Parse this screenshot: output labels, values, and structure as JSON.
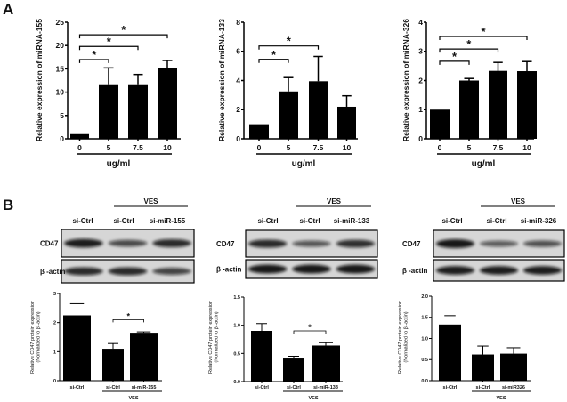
{
  "panel_labels": {
    "a": "A",
    "b": "B"
  },
  "chart_data": [
    {
      "type": "bar",
      "panel": "A",
      "ylabel": "Relative  expression of miRNA-155",
      "xlabel": "ug/ml",
      "categories": [
        "0",
        "5",
        "7.5",
        "10"
      ],
      "values": [
        1,
        11.5,
        11.5,
        15.1
      ],
      "errors": [
        0,
        3.7,
        2.3,
        1.7
      ],
      "ylim": [
        0,
        25
      ],
      "yticks": [
        "0",
        "5",
        "10",
        "15",
        "20",
        "25"
      ],
      "ytick_values": [
        0,
        5,
        10,
        15,
        20,
        25
      ],
      "significance": [
        {
          "pair": [
            0,
            1
          ],
          "y": 17,
          "label": "*"
        },
        {
          "pair": [
            0,
            2
          ],
          "y": 19.8,
          "label": "*"
        },
        {
          "pair": [
            0,
            3
          ],
          "y": 22.3,
          "label": "*"
        }
      ]
    },
    {
      "type": "bar",
      "panel": "A",
      "ylabel": "Relative  expression of miRNA-133",
      "xlabel": "ug/ml",
      "categories": [
        "0",
        "5",
        "7.5",
        "10"
      ],
      "values": [
        1,
        3.25,
        3.95,
        2.2
      ],
      "errors": [
        0,
        0.95,
        1.7,
        0.75
      ],
      "ylim": [
        0,
        8
      ],
      "yticks": [
        "0",
        "2",
        "4",
        "6",
        "8"
      ],
      "ytick_values": [
        0,
        2,
        4,
        6,
        8
      ],
      "significance": [
        {
          "pair": [
            0,
            1
          ],
          "y": 5.45,
          "label": "*"
        },
        {
          "pair": [
            0,
            2
          ],
          "y": 6.37,
          "label": "*"
        }
      ]
    },
    {
      "type": "bar",
      "panel": "A",
      "ylabel": "Relative  expression of miRNA-326",
      "xlabel": "ug/ml",
      "categories": [
        "0",
        "5",
        "7.5",
        "10"
      ],
      "values": [
        1,
        2.0,
        2.33,
        2.32
      ],
      "errors": [
        0,
        0.07,
        0.29,
        0.33
      ],
      "ylim": [
        0,
        4
      ],
      "yticks": [
        "0",
        "1",
        "2",
        "3",
        "4"
      ],
      "ytick_values": [
        0,
        1,
        2,
        3,
        4
      ],
      "significance": [
        {
          "pair": [
            0,
            1
          ],
          "y": 2.66,
          "label": "*"
        },
        {
          "pair": [
            0,
            2
          ],
          "y": 3.08,
          "label": "*"
        },
        {
          "pair": [
            0,
            3
          ],
          "y": 3.51,
          "label": "*"
        }
      ]
    },
    {
      "type": "bar",
      "panel": "B",
      "ylabel": "Relative CD47 protein expression",
      "ylabel2": "(Normalized to β -actin)",
      "xlabel": "VES",
      "categories": [
        "si-Ctrl",
        "si-Ctrl",
        "si-miR-155"
      ],
      "values": [
        2.25,
        1.1,
        1.65
      ],
      "errors": [
        0.4,
        0.18,
        0.03
      ],
      "ylim": [
        0,
        3
      ],
      "yticks": [
        "0",
        "1",
        "2",
        "3"
      ],
      "ytick_values": [
        0,
        1,
        2,
        3
      ],
      "significance": [
        {
          "pair": [
            1,
            2
          ],
          "y": 2.1,
          "label": "*"
        }
      ]
    },
    {
      "type": "bar",
      "panel": "B",
      "ylabel": "Relative CD47 protein expression",
      "ylabel2": "(Normalized to β -actin)",
      "xlabel": "VES",
      "categories": [
        "si-Ctrl",
        "si-Ctrl",
        "si-miR-133"
      ],
      "values": [
        0.9,
        0.41,
        0.64
      ],
      "errors": [
        0.13,
        0.04,
        0.05
      ],
      "ylim": [
        0,
        1.5
      ],
      "yticks": [
        "0.0",
        "0.5",
        "1.0",
        "1.5"
      ],
      "ytick_values": [
        0,
        0.5,
        1,
        1.5
      ],
      "significance": [
        {
          "pair": [
            1,
            2
          ],
          "y": 0.9,
          "label": "*"
        }
      ]
    },
    {
      "type": "bar",
      "panel": "B",
      "ylabel": "Relative CD47 protein expression",
      "ylabel2": "(Normalized to β -actin)",
      "xlabel": "VES",
      "categories": [
        "si-Ctrl",
        "si-Ctrl",
        "si-miR326"
      ],
      "values": [
        1.33,
        0.62,
        0.64
      ],
      "errors": [
        0.21,
        0.2,
        0.14
      ],
      "ylim": [
        0,
        2
      ],
      "yticks": [
        "0.0",
        "0.5",
        "1.0",
        "1.5",
        "2.0"
      ],
      "ytick_values": [
        0,
        0.5,
        1,
        1.5,
        2
      ],
      "significance": []
    }
  ],
  "blots": [
    {
      "group": "VES",
      "lanes": [
        "si-Ctrl",
        "si-Ctrl",
        "si-miR-155"
      ],
      "rows": [
        "CD47",
        "β -actin"
      ]
    },
    {
      "group": "VES",
      "lanes": [
        "si-Ctrl",
        "si-Ctrl",
        "si-miR-133"
      ],
      "rows": [
        "CD47",
        "β -actin"
      ]
    },
    {
      "group": "VES",
      "lanes": [
        "si-Ctrl",
        "si-Ctrl",
        "si-miR-326"
      ],
      "rows": [
        "CD47",
        "β -actin"
      ]
    }
  ]
}
